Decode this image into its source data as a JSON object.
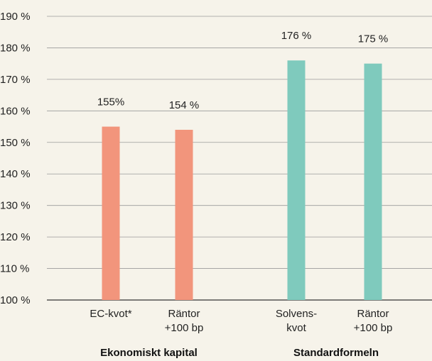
{
  "chart_data": {
    "type": "bar",
    "categories": [
      [
        "EC-kvot*"
      ],
      [
        "Räntor",
        "+100 bp"
      ],
      [
        "Solvens-",
        "kvot"
      ],
      [
        "Räntor",
        "+100 bp"
      ]
    ],
    "values": [
      155,
      154,
      176,
      175
    ],
    "data_labels": [
      "155%",
      "154 %",
      "176 %",
      "175 %"
    ],
    "groups": [
      {
        "label": "Ekonomiskt kapital",
        "members": [
          0,
          1
        ],
        "color": "#f2957c"
      },
      {
        "label": "Standardformeln",
        "members": [
          2,
          3
        ],
        "color": "#7fcabd"
      }
    ],
    "bar_colors": [
      "#f2957c",
      "#f2957c",
      "#7fcabd",
      "#7fcabd"
    ],
    "yticks": [
      100,
      110,
      120,
      130,
      140,
      150,
      160,
      170,
      180,
      190
    ],
    "ytick_labels": [
      "100 %",
      "110 %",
      "120 %",
      "130 %",
      "140 %",
      "150 %",
      "160 %",
      "170 %",
      "180 %",
      "190 %"
    ],
    "ylim": [
      100,
      190
    ],
    "grid": true,
    "title": "",
    "xlabel": "",
    "ylabel": ""
  }
}
